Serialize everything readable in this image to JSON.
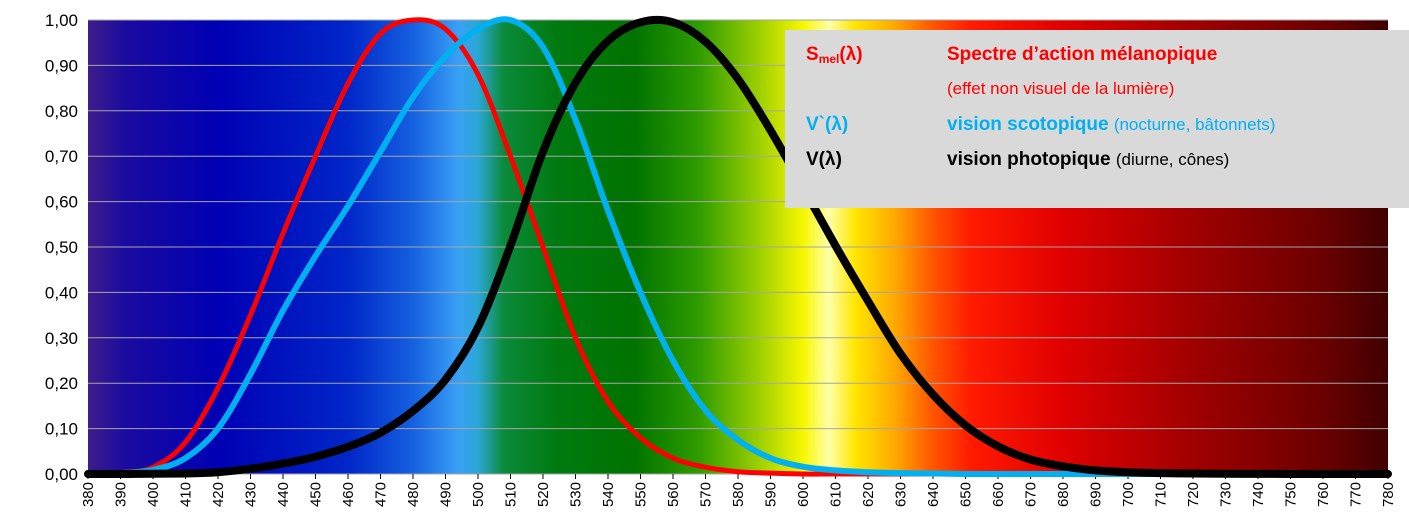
{
  "chart_data": {
    "type": "line",
    "xlabel": "",
    "ylabel": "",
    "ylim": [
      0,
      1
    ],
    "xlim": [
      380,
      780
    ],
    "grid": true,
    "legend_position": "top-right",
    "background": "visible spectrum gradient (violet to dark red)",
    "yticks": [
      "0,00",
      "0,10",
      "0,20",
      "0,30",
      "0,40",
      "0,50",
      "0,60",
      "0,70",
      "0,80",
      "0,90",
      "1,00"
    ],
    "yticks_values": [
      0,
      0.1,
      0.2,
      0.3,
      0.4,
      0.5,
      0.6,
      0.7,
      0.8,
      0.9,
      1.0
    ],
    "xticks": [
      "380",
      "390",
      "400",
      "410",
      "420",
      "430",
      "440",
      "450",
      "460",
      "470",
      "480",
      "490",
      "500",
      "510",
      "520",
      "530",
      "540",
      "550",
      "560",
      "570",
      "580",
      "590",
      "600",
      "610",
      "620",
      "630",
      "640",
      "650",
      "660",
      "670",
      "680",
      "690",
      "700",
      "710",
      "720",
      "730",
      "740",
      "750",
      "760",
      "770",
      "780"
    ],
    "x": [
      380,
      390,
      400,
      410,
      420,
      430,
      440,
      450,
      460,
      470,
      480,
      490,
      500,
      510,
      520,
      530,
      540,
      550,
      560,
      570,
      580,
      590,
      600,
      610,
      620,
      630,
      640,
      650,
      660,
      670,
      680,
      690,
      700,
      710,
      720,
      730,
      740,
      750,
      760,
      770,
      780
    ],
    "series": [
      {
        "key": "smel",
        "color": "#ff0000",
        "values": [
          0.0,
          0.003,
          0.015,
          0.07,
          0.19,
          0.35,
          0.53,
          0.7,
          0.86,
          0.97,
          1.0,
          0.98,
          0.88,
          0.7,
          0.5,
          0.3,
          0.16,
          0.08,
          0.035,
          0.015,
          0.005,
          0.002,
          0,
          0,
          0,
          0,
          0,
          0,
          0,
          0,
          0,
          0,
          0,
          0,
          0,
          0,
          0,
          0,
          0,
          0,
          0
        ]
      },
      {
        "key": "vscot",
        "color": "#00b0f0",
        "values": [
          0.001,
          0.002,
          0.009,
          0.035,
          0.1,
          0.22,
          0.36,
          0.48,
          0.59,
          0.71,
          0.83,
          0.92,
          0.98,
          1.0,
          0.94,
          0.78,
          0.58,
          0.4,
          0.25,
          0.14,
          0.075,
          0.035,
          0.016,
          0.008,
          0.004,
          0.002,
          0.001,
          0,
          0,
          0,
          0,
          0,
          0,
          0,
          0,
          0,
          0,
          0,
          0,
          0,
          0
        ]
      },
      {
        "key": "vphot",
        "color": "#000000",
        "values": [
          0.0,
          0.0001,
          0.0004,
          0.0012,
          0.004,
          0.0116,
          0.023,
          0.038,
          0.06,
          0.091,
          0.139,
          0.208,
          0.323,
          0.503,
          0.71,
          0.862,
          0.954,
          0.995,
          0.995,
          0.952,
          0.87,
          0.757,
          0.631,
          0.503,
          0.381,
          0.265,
          0.175,
          0.107,
          0.061,
          0.032,
          0.017,
          0.008,
          0.004,
          0.002,
          0.001,
          0.0005,
          0.0002,
          0.0001,
          0.0,
          0.0,
          0.0
        ]
      }
    ],
    "legend": [
      {
        "symbol_main": "S",
        "symbol_sub": "mel",
        "symbol_tail": "(λ)",
        "text_bold": "Spectre d’action mélanopique",
        "text_normal": "",
        "note": "(effet non visuel de la lumière)",
        "color_symbol": "#ff0000",
        "color_bold": "#ff0000",
        "color_normal": "#ff0000"
      },
      {
        "symbol": "V`(λ)",
        "text_bold": "vision scotopique",
        "text_normal": "(nocturne, bâtonnets)",
        "color_symbol": "#00b0f0",
        "color_bold": "#00b0f0",
        "color_normal": "#00b0f0"
      },
      {
        "symbol": "V(λ)",
        "text_bold": "vision photopique",
        "text_normal": "(diurne, cônes)",
        "color_symbol": "#000000",
        "color_bold": "#000000",
        "color_normal": "#000000"
      }
    ]
  }
}
